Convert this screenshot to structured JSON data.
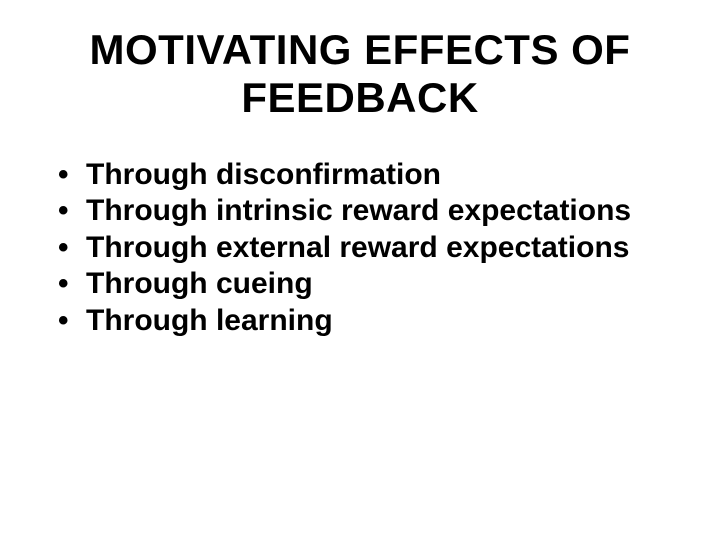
{
  "slide": {
    "title_line1": "MOTIVATING EFFECTS OF",
    "title_line2": "FEEDBACK",
    "bullets": [
      "Through disconfirmation",
      "Through intrinsic reward expectations",
      "Through external reward expectations",
      "Through cueing",
      "Through learning"
    ]
  },
  "style": {
    "background_color": "#ffffff",
    "text_color": "#000000",
    "font_family": "Arial",
    "title_fontsize": 42,
    "title_fontweight": 700,
    "bullet_fontsize": 30,
    "bullet_fontweight": 700
  }
}
